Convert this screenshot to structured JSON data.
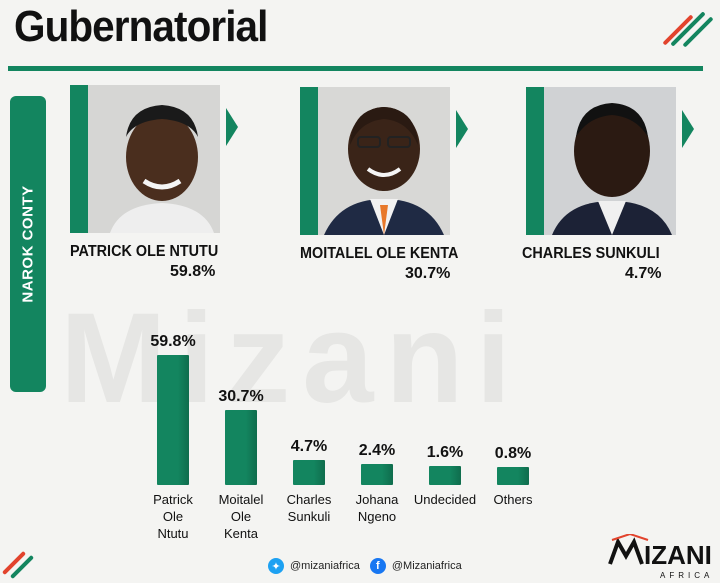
{
  "title": "Gubernatorial",
  "side_label": "NAROK CONTY",
  "colors": {
    "green": "#13855f",
    "red": "#e2432d",
    "title": "#111111",
    "background": "#f4f4f2"
  },
  "candidates": [
    {
      "name": "PATRICK OLE NTUTU",
      "pct": "59.8%"
    },
    {
      "name": "MOITALEL OLE KENTA",
      "pct": "30.7%"
    },
    {
      "name": "CHARLES SUNKULI",
      "pct": "4.7%"
    }
  ],
  "watermark": "Mizani",
  "chart_data": {
    "type": "bar",
    "categories": [
      "Patrick\nOle\nNtutu",
      "Moitalel\nOle\nKenta",
      "Charles\nSunkuli",
      "Johana\nNgeno",
      "Undecided",
      "Others"
    ],
    "values": [
      59.8,
      30.7,
      4.7,
      2.4,
      1.6,
      0.8
    ],
    "value_labels": [
      "59.8%",
      "30.7%",
      "4.7%",
      "2.4%",
      "1.6%",
      "0.8%"
    ],
    "title": "",
    "xlabel": "",
    "ylabel": "",
    "grid": false
  },
  "footer": {
    "twitter_handle": "@mizaniafrica",
    "facebook_handle": "@Mizaniafrica",
    "twitter_icon": "twitter-icon",
    "facebook_icon": "facebook-icon"
  },
  "logo": {
    "text": "MIZANI",
    "sub": "AFRICA"
  }
}
